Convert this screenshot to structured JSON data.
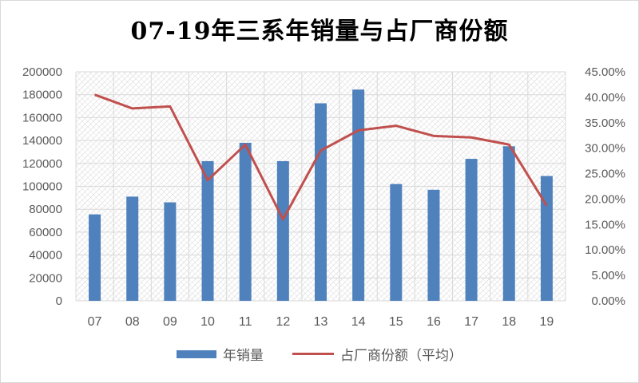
{
  "title": "07-19年三系年销量与占厂商份额",
  "colors": {
    "bar": "#4f81bd",
    "line": "#c0504d",
    "grid": "#d9d9d9"
  },
  "chart_data": {
    "type": "bar",
    "title": "07-19年三系年销量与占厂商份额",
    "categories": [
      "07",
      "08",
      "09",
      "10",
      "11",
      "12",
      "13",
      "14",
      "15",
      "16",
      "17",
      "18",
      "19"
    ],
    "series": [
      {
        "name": "年销量",
        "type": "bar",
        "axis": "left",
        "values": [
          75500,
          91000,
          86000,
          122000,
          138000,
          122000,
          172500,
          184500,
          102000,
          97000,
          124000,
          135000,
          109000
        ]
      },
      {
        "name": "占厂商份额（平均）",
        "type": "line",
        "axis": "right",
        "values": [
          0.405,
          0.378,
          0.382,
          0.237,
          0.307,
          0.16,
          0.295,
          0.335,
          0.344,
          0.324,
          0.321,
          0.307,
          0.187
        ]
      }
    ],
    "y_left": {
      "min": 0,
      "max": 200000,
      "ticks": [
        "0",
        "20000",
        "40000",
        "60000",
        "80000",
        "100000",
        "120000",
        "140000",
        "160000",
        "180000",
        "200000"
      ]
    },
    "y_right": {
      "min": 0,
      "max": 0.45,
      "ticks": [
        "0.00%",
        "5.00%",
        "10.00%",
        "15.00%",
        "20.00%",
        "25.00%",
        "30.00%",
        "35.00%",
        "40.00%",
        "45.00%"
      ]
    },
    "grid": true,
    "legend_position": "bottom"
  }
}
